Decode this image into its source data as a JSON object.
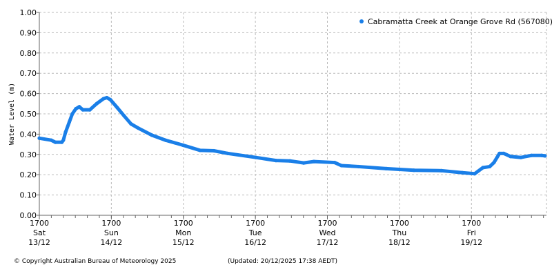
{
  "chart_data": {
    "type": "scatter",
    "title": "",
    "ylabel": "Water Level (m)",
    "xlabel": "",
    "ylim": [
      0,
      1.0
    ],
    "xlim": [
      "2025-12-13T17:00",
      "2025-12-20T18:00"
    ],
    "grid": true,
    "legend_placement": "top-right",
    "series_color": "#1a7fe8",
    "y_ticks": [
      "0.00",
      "0.10",
      "0.20",
      "0.30",
      "0.40",
      "0.50",
      "0.60",
      "0.70",
      "0.80",
      "0.90",
      "1.00"
    ],
    "x_ticks": [
      {
        "time": "2025-12-13T17:00",
        "label": "1700",
        "day": "Sat",
        "date": "13/12"
      },
      {
        "time": "2025-12-14T17:00",
        "label": "1700",
        "day": "Sun",
        "date": "14/12"
      },
      {
        "time": "2025-12-15T17:00",
        "label": "1700",
        "day": "Mon",
        "date": "15/12"
      },
      {
        "time": "2025-12-16T17:00",
        "label": "1700",
        "day": "Tue",
        "date": "16/12"
      },
      {
        "time": "2025-12-17T17:00",
        "label": "1700",
        "day": "Wed",
        "date": "17/12"
      },
      {
        "time": "2025-12-18T17:00",
        "label": "1700",
        "day": "Thu",
        "date": "18/12"
      },
      {
        "time": "2025-12-19T17:00",
        "label": "1700",
        "day": "Fri",
        "date": "19/12"
      }
    ],
    "series": [
      {
        "name": "Cabramatta Creek at Orange Grove Rd (567080)",
        "points": [
          [
            "2025-12-13T17:00",
            0.38
          ],
          [
            "2025-12-13T21:00",
            0.37
          ],
          [
            "2025-12-13T22:20",
            0.36
          ],
          [
            "2025-12-14T00:30",
            0.36
          ],
          [
            "2025-12-14T01:00",
            0.37
          ],
          [
            "2025-12-14T01:45",
            0.41
          ],
          [
            "2025-12-14T03:00",
            0.46
          ],
          [
            "2025-12-14T04:00",
            0.5
          ],
          [
            "2025-12-14T05:10",
            0.525
          ],
          [
            "2025-12-14T06:20",
            0.535
          ],
          [
            "2025-12-14T07:30",
            0.52
          ],
          [
            "2025-12-14T09:50",
            0.52
          ],
          [
            "2025-12-14T12:05",
            0.55
          ],
          [
            "2025-12-14T14:25",
            0.575
          ],
          [
            "2025-12-14T15:30",
            0.58
          ],
          [
            "2025-12-14T16:40",
            0.57
          ],
          [
            "2025-12-14T19:00",
            0.53
          ],
          [
            "2025-12-14T21:15",
            0.49
          ],
          [
            "2025-12-14T23:35",
            0.45
          ],
          [
            "2025-12-15T01:55",
            0.43
          ],
          [
            "2025-12-15T06:30",
            0.395
          ],
          [
            "2025-12-15T11:05",
            0.37
          ],
          [
            "2025-12-15T17:00",
            0.345
          ],
          [
            "2025-12-15T22:35",
            0.32
          ],
          [
            "2025-12-16T03:10",
            0.318
          ],
          [
            "2025-12-16T07:45",
            0.305
          ],
          [
            "2025-12-16T17:10",
            0.285
          ],
          [
            "2025-12-16T23:50",
            0.27
          ],
          [
            "2025-12-17T04:30",
            0.268
          ],
          [
            "2025-12-17T09:05",
            0.258
          ],
          [
            "2025-12-17T12:30",
            0.265
          ],
          [
            "2025-12-17T19:25",
            0.26
          ],
          [
            "2025-12-17T21:40",
            0.245
          ],
          [
            "2025-12-18T03:25",
            0.24
          ],
          [
            "2025-12-18T12:35",
            0.23
          ],
          [
            "2025-12-18T21:50",
            0.222
          ],
          [
            "2025-12-19T07:00",
            0.22
          ],
          [
            "2025-12-19T13:55",
            0.21
          ],
          [
            "2025-12-19T18:05",
            0.205
          ],
          [
            "2025-12-19T20:50",
            0.235
          ],
          [
            "2025-12-19T23:05",
            0.24
          ],
          [
            "2025-12-20T00:30",
            0.26
          ],
          [
            "2025-12-20T02:20",
            0.305
          ],
          [
            "2025-12-20T03:45",
            0.305
          ],
          [
            "2025-12-20T06:00",
            0.29
          ],
          [
            "2025-12-20T09:30",
            0.285
          ],
          [
            "2025-12-20T12:55",
            0.295
          ],
          [
            "2025-12-20T16:25",
            0.295
          ],
          [
            "2025-12-20T17:30",
            0.293
          ]
        ]
      }
    ]
  },
  "footer": {
    "copyright": "© Copyright Australian Bureau of Meteorology 2025",
    "updated": "(Updated: 20/12/2025 17:38 AEDT)"
  }
}
